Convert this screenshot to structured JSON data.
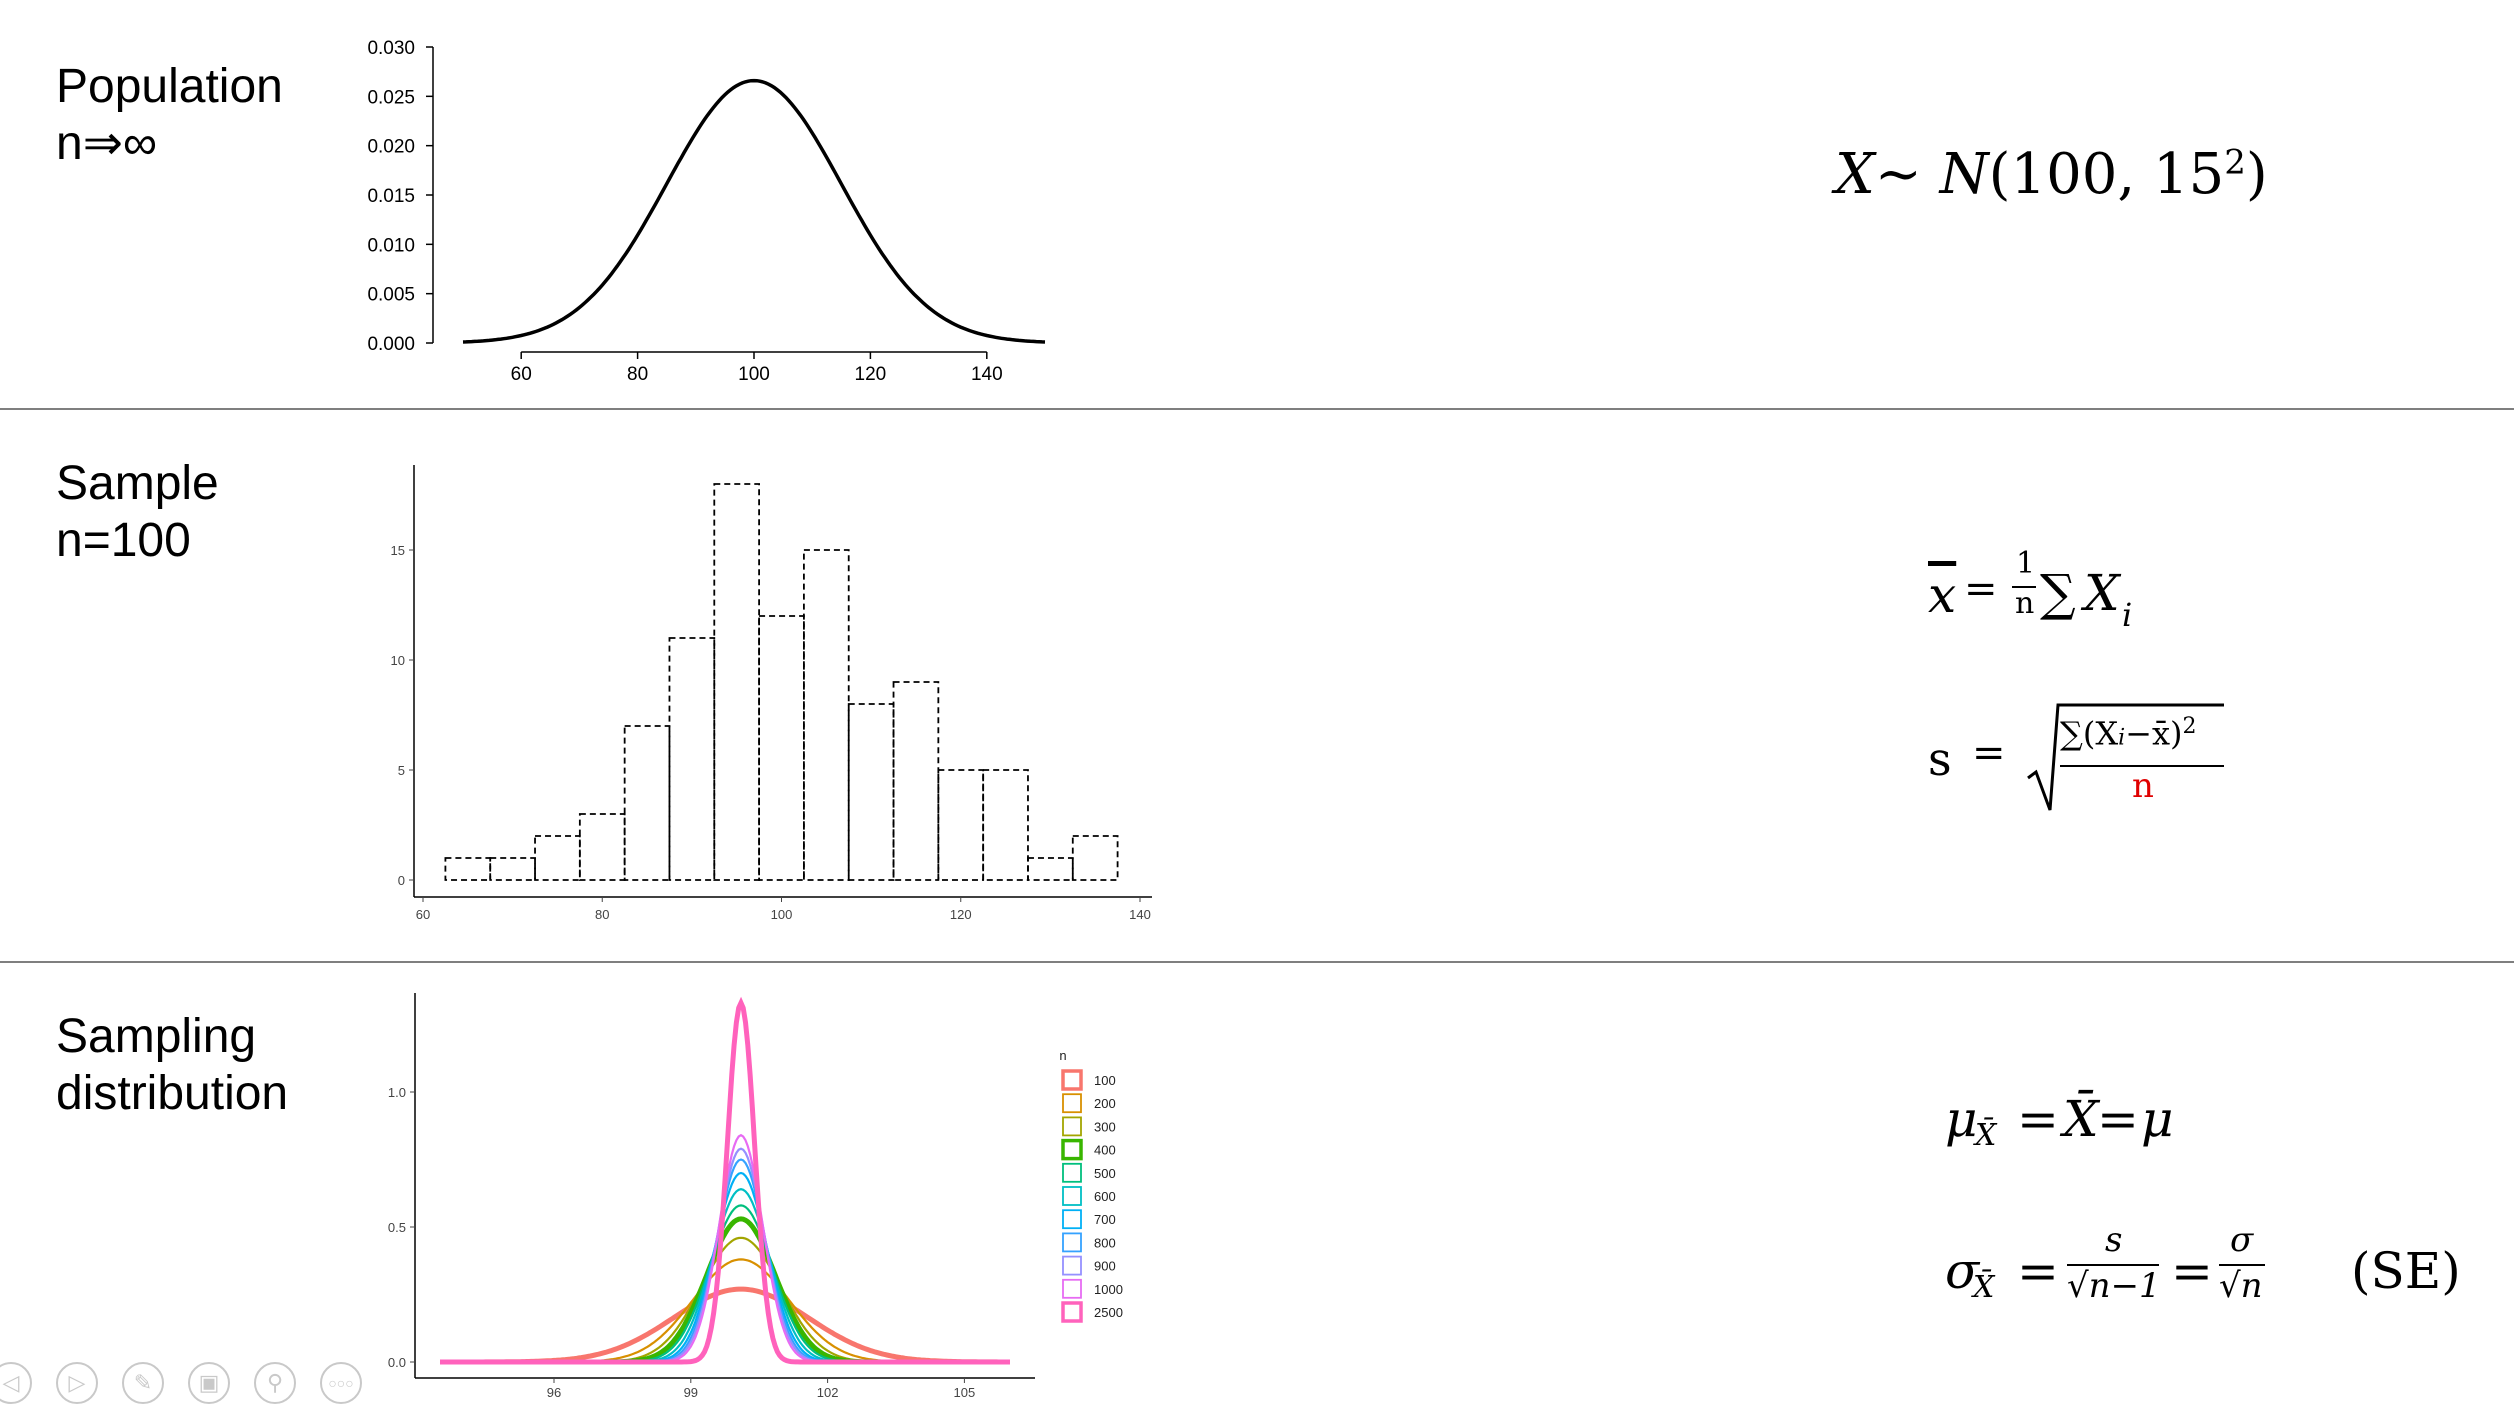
{
  "rows": {
    "population": {
      "label_line1": "Population",
      "label_line2": "n⇒∞"
    },
    "sample": {
      "label_line1": "Sample",
      "label_line2": "n=100"
    },
    "sampling": {
      "label_line1": "Sampling",
      "label_line2": "distribution"
    }
  },
  "formulas": {
    "population": {
      "lhs": "X",
      "tilde": "~",
      "dist": "N",
      "args": "(100, 15",
      "exp": "2",
      "close": ")"
    },
    "mean": {
      "xbar": "x",
      "eq": "=",
      "frac_num": "1",
      "frac_den": "n",
      "sum": "∑",
      "X": "X",
      "sub": "i"
    },
    "sd": {
      "s": "s",
      "eq": "=",
      "num": "∑(X",
      "num_sub": "i",
      "num_rest": "−x̄)",
      "num_exp": "2",
      "den": "n",
      "den_color": "#e00000"
    },
    "mu": {
      "mu": "μ",
      "sub": "X̄",
      "eq1": "=",
      "xbar": "X̄",
      "eq2": "=",
      "mu2": "μ"
    },
    "sigma": {
      "sigma": "σ",
      "sub": "X̄",
      "eq1": "=",
      "num1": "s",
      "den1": "√n−1",
      "eq2": "=",
      "num2": "σ",
      "den2": "√n",
      "note": "(SE)"
    }
  },
  "controls": [
    "prev-icon",
    "play-icon",
    "pen-icon",
    "slides-icon",
    "zoom-icon",
    "more-icon"
  ],
  "chart_data": [
    {
      "type": "line",
      "name": "population-density",
      "x_range": [
        50,
        150
      ],
      "mean": 100,
      "sd": 15,
      "ylim": [
        0,
        0.03
      ],
      "xlim": [
        50,
        150
      ],
      "x_ticks": [
        "60",
        "80",
        "100",
        "120",
        "140"
      ],
      "y_ticks": [
        "0.000",
        "0.005",
        "0.010",
        "0.015",
        "0.020",
        "0.025",
        "0.030"
      ],
      "title": "",
      "xlabel": "",
      "ylabel": ""
    },
    {
      "type": "bar",
      "name": "sample-histogram",
      "bin_edges": [
        62.5,
        67.5,
        72.5,
        77.5,
        82.5,
        87.5,
        92.5,
        97.5,
        102.5,
        107.5,
        112.5,
        117.5,
        122.5,
        127.5,
        132.5,
        137.5
      ],
      "values": [
        1,
        1,
        2,
        3,
        7,
        11,
        18,
        12,
        15,
        8,
        9,
        5,
        5,
        1,
        2
      ],
      "xlim": [
        60,
        140
      ],
      "ylim": [
        0,
        18
      ],
      "x_ticks": [
        "60",
        "80",
        "100",
        "120",
        "140"
      ],
      "y_ticks": [
        "0",
        "5",
        "10",
        "15"
      ],
      "title": "",
      "xlabel": "",
      "ylabel": ""
    },
    {
      "type": "line",
      "name": "sampling-distribution",
      "legend_title": "n",
      "legend_position": "right",
      "xlim": [
        93.5,
        106
      ],
      "ylim": [
        0,
        1.3
      ],
      "x_ticks": [
        "96",
        "99",
        "102",
        "105"
      ],
      "y_ticks": [
        "0.0",
        "0.5",
        "1.0"
      ],
      "mean": 100.1,
      "series": [
        {
          "name": "100",
          "peak": 0.27,
          "color": "#F8766D"
        },
        {
          "name": "200",
          "peak": 0.38,
          "color": "#D89000"
        },
        {
          "name": "300",
          "peak": 0.46,
          "color": "#A3A500"
        },
        {
          "name": "400",
          "peak": 0.53,
          "color": "#39B600"
        },
        {
          "name": "500",
          "peak": 0.58,
          "color": "#00BF7D"
        },
        {
          "name": "600",
          "peak": 0.64,
          "color": "#00BFC4"
        },
        {
          "name": "700",
          "peak": 0.7,
          "color": "#00B0F6"
        },
        {
          "name": "800",
          "peak": 0.75,
          "color": "#35A2FF"
        },
        {
          "name": "900",
          "peak": 0.79,
          "color": "#9590FF"
        },
        {
          "name": "1000",
          "peak": 0.84,
          "color": "#E76BF3"
        },
        {
          "name": "2500",
          "peak": 1.33,
          "color": "#FF62BC"
        }
      ],
      "title": "",
      "xlabel": "",
      "ylabel": ""
    }
  ]
}
